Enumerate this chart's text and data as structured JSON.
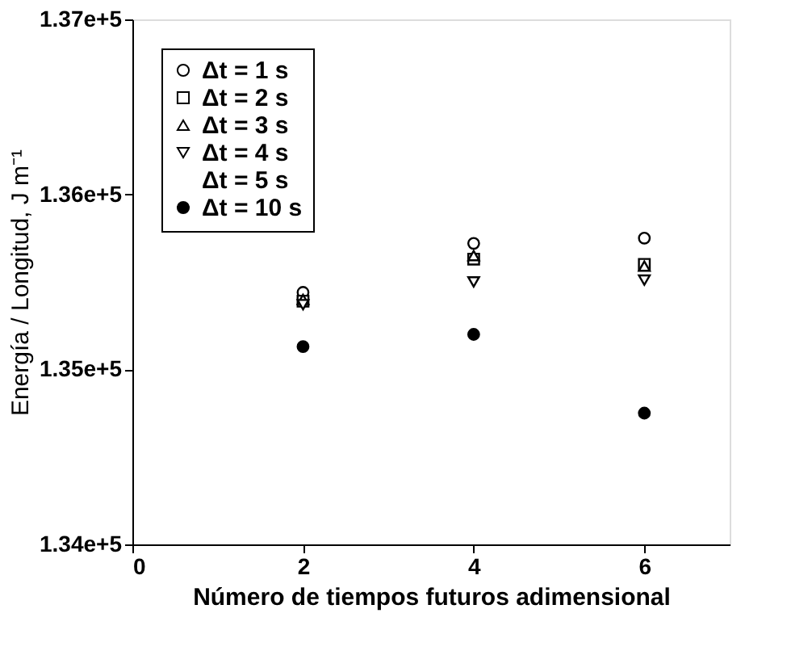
{
  "chart_data": {
    "type": "scatter",
    "xlabel": "Número de tiempos futuros adimensional",
    "ylabel": "Energía / Longitud, J m⁻¹",
    "x": [
      2,
      4,
      6
    ],
    "xlim": [
      0,
      7
    ],
    "xticks": [
      0,
      2,
      4,
      6
    ],
    "ylim": [
      134000,
      137000
    ],
    "yticks": [
      {
        "value": 134000,
        "label": "1.34e+5"
      },
      {
        "value": 135000,
        "label": "1.35e+5"
      },
      {
        "value": 136000,
        "label": "1.36e+5"
      },
      {
        "value": 137000,
        "label": "1.37e+5"
      }
    ],
    "grid": false,
    "legend": "top left",
    "series": [
      {
        "name": "Δt = 1 s",
        "color": "#ffffff",
        "marker": "circle",
        "values": [
          135440,
          135720,
          135750
        ]
      },
      {
        "name": "Δt = 2 s",
        "color": "#ffffff",
        "marker": "square",
        "values": [
          135390,
          135630,
          135600
        ]
      },
      {
        "name": "Δt = 3 s",
        "color": "#ffffff",
        "marker": "triangle",
        "values": [
          135400,
          135650,
          135590
        ]
      },
      {
        "name": "Δt = 4 s",
        "color": "#ffffff",
        "marker": "triangle-down",
        "values": [
          135370,
          135500,
          135510
        ]
      },
      {
        "name": "Δt = 5 s",
        "marker": "none",
        "values": [
          null,
          null,
          null
        ]
      },
      {
        "name": "Δt = 10 s",
        "color": "#000000",
        "marker": "circle",
        "values": [
          135130,
          135200,
          134750
        ]
      }
    ]
  }
}
